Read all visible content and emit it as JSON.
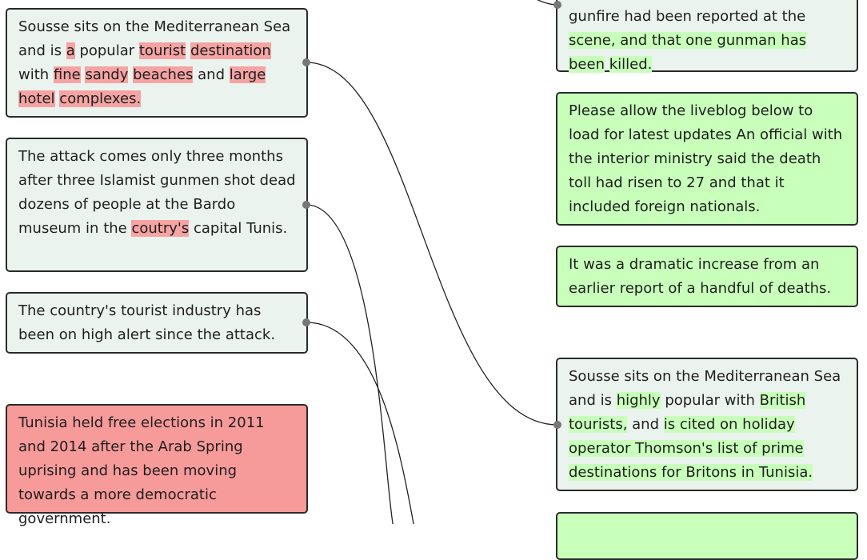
{
  "left_cards": [
    {
      "kind": "neutral",
      "segments": [
        {
          "t": "Sousse sits on the Mediterranean Sea and is "
        },
        {
          "t": "a",
          "hl": true
        },
        {
          "t": " popular "
        },
        {
          "t": "tourist",
          "hl": true
        },
        {
          "t": " "
        },
        {
          "t": "destination",
          "hl": true
        },
        {
          "t": " with "
        },
        {
          "t": "fine",
          "hl": true
        },
        {
          "t": " "
        },
        {
          "t": "sandy",
          "hl": true
        },
        {
          "t": " "
        },
        {
          "t": "beaches",
          "hl": true
        },
        {
          "t": " and "
        },
        {
          "t": "large",
          "hl": true
        },
        {
          "t": " "
        },
        {
          "t": "hotel",
          "hl": true
        },
        {
          "t": " "
        },
        {
          "t": "complexes.",
          "hl": true
        }
      ]
    },
    {
      "kind": "neutral",
      "segments": [
        {
          "t": "The attack comes only three months after three Islamist gunmen shot dead dozens of people at the Bardo museum in the "
        },
        {
          "t": "coutry's",
          "hl": true
        },
        {
          "t": " capital Tunis."
        }
      ]
    },
    {
      "kind": "neutral",
      "segments": [
        {
          "t": "The country's tourist industry has been on high alert since the attack."
        }
      ]
    },
    {
      "kind": "deleted",
      "segments": [
        {
          "t": "Tunisia held free elections in 2011 and 2014 after the Arab Spring uprising and has been moving towards a more democratic government."
        }
      ]
    }
  ],
  "right_cards": [
    {
      "kind": "partial",
      "segments": [
        {
          "t": "gunfire had been reported at the"
        },
        {
          "t": " "
        },
        {
          "t": "scene, and that one gunman has been",
          "hl": true
        },
        {
          "t": " "
        },
        {
          "t": "killed.",
          "hl": true
        }
      ]
    },
    {
      "kind": "added",
      "segments": [
        {
          "t": "Please allow the liveblog below to load for latest updates An official with the interior ministry said the death toll had risen to 27 and that it included foreign nationals."
        }
      ]
    },
    {
      "kind": "added",
      "segments": [
        {
          "t": "It was a dramatic increase from an earlier report of a handful of deaths."
        }
      ]
    },
    {
      "kind": "neutral",
      "segments": [
        {
          "t": "Sousse sits on the Mediterranean Sea and is "
        },
        {
          "t": "highly",
          "hl": true
        },
        {
          "t": " popular with "
        },
        {
          "t": "British",
          "hl": true
        },
        {
          "t": " "
        },
        {
          "t": "tourists,",
          "hl": true
        },
        {
          "t": " and "
        },
        {
          "t": "is cited on holiday operator Thomson's list of prime destinations for Britons in Tunisia.",
          "hl": true
        }
      ]
    },
    {
      "kind": "added",
      "segments": []
    }
  ]
}
